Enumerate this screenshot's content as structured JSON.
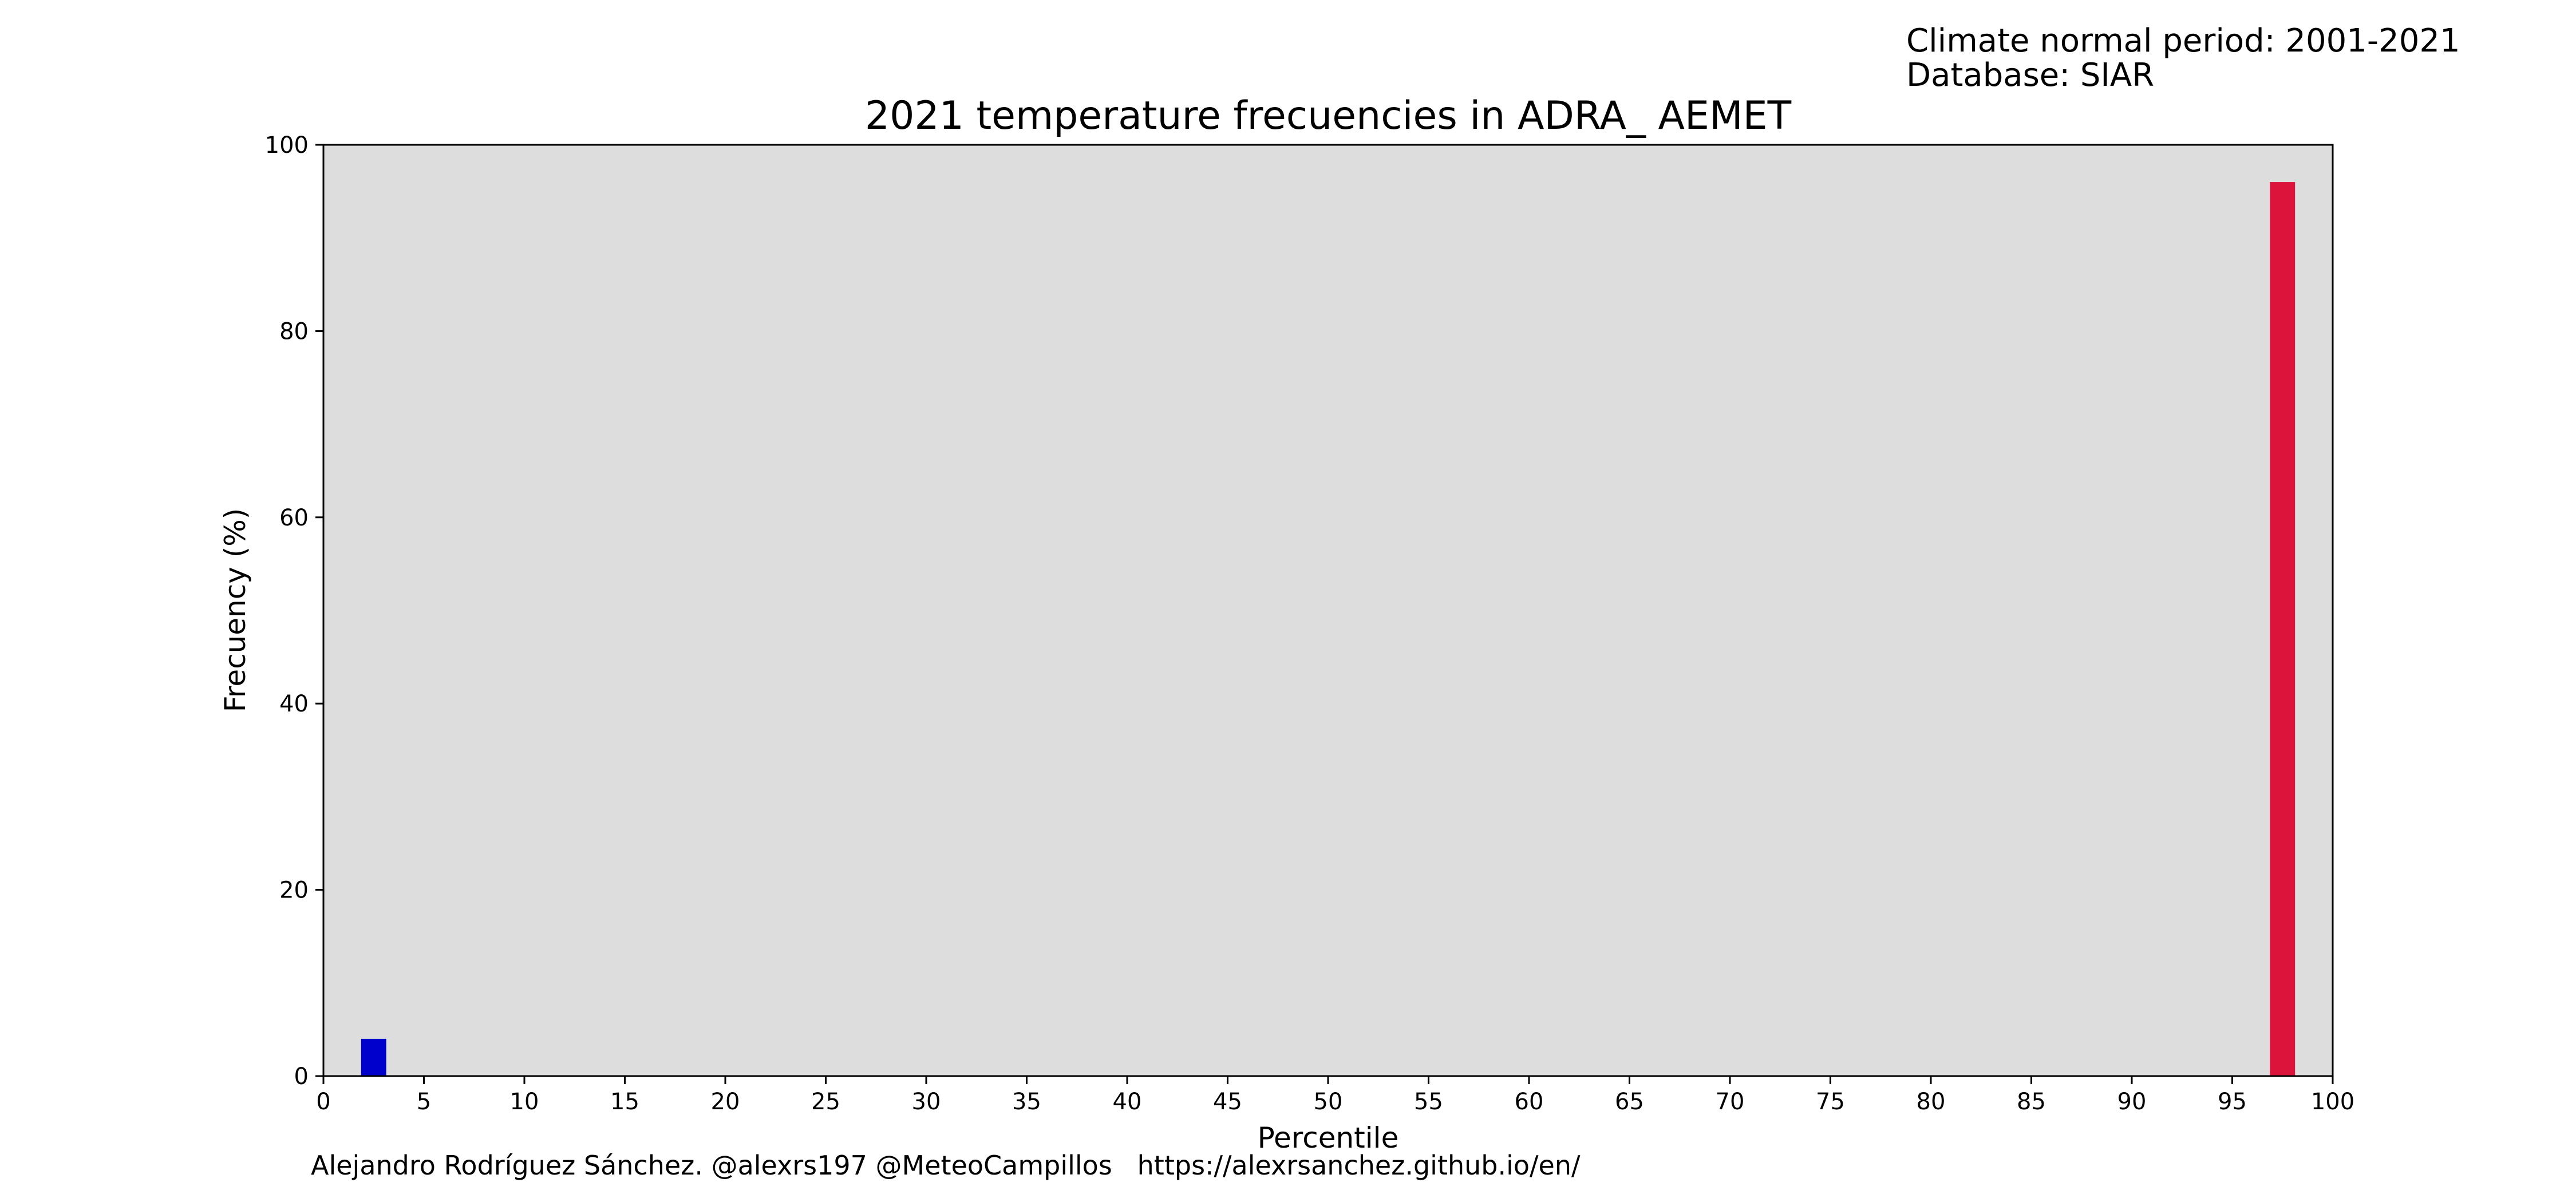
{
  "header": {
    "lines": [
      "Climate normal period: 2001-2021",
      "Database: SIAR"
    ]
  },
  "footer": {
    "credit": "Alejandro Rodríguez Sánchez. @alexrs197 @MeteoCampillos   https://alexrsanchez.github.io/en/"
  },
  "colors": {
    "plot_background": "#dddddd",
    "low_bar": "#0000cd",
    "high_bar": "#dc143c",
    "axis": "#000000"
  },
  "chart_data": {
    "type": "bar",
    "title": "2021 temperature frecuencies in ADRA_ AEMET",
    "xlabel": "Percentile",
    "ylabel": "Frecuency (%)",
    "xlim": [
      0,
      100
    ],
    "ylim": [
      0,
      100
    ],
    "xticks": [
      0,
      5,
      10,
      15,
      20,
      25,
      30,
      35,
      40,
      45,
      50,
      55,
      60,
      65,
      70,
      75,
      80,
      85,
      90,
      95,
      100
    ],
    "yticks": [
      0,
      20,
      40,
      60,
      80,
      100
    ],
    "grid": false,
    "bar_width": 1.25,
    "bars": [
      {
        "x": 2.5,
        "value": 4,
        "color": "#0000cd"
      },
      {
        "x": 97.5,
        "value": 96,
        "color": "#dc143c"
      }
    ]
  }
}
